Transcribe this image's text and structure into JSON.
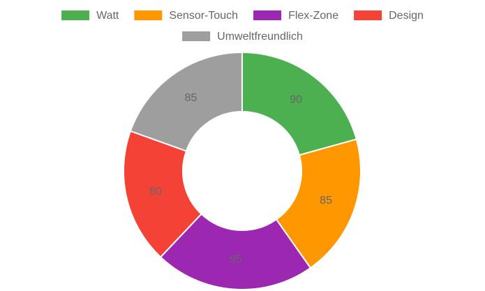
{
  "chart_data": {
    "type": "doughnut",
    "categories": [
      "Watt",
      "Sensor-Touch",
      "Flex-Zone",
      "Design",
      "Umweltfreundlich"
    ],
    "values": [
      90,
      85,
      95,
      80,
      85
    ],
    "colors": [
      "#4caf50",
      "#ff9800",
      "#9c27b0",
      "#f44336",
      "#9e9e9e"
    ],
    "legend": "top"
  }
}
